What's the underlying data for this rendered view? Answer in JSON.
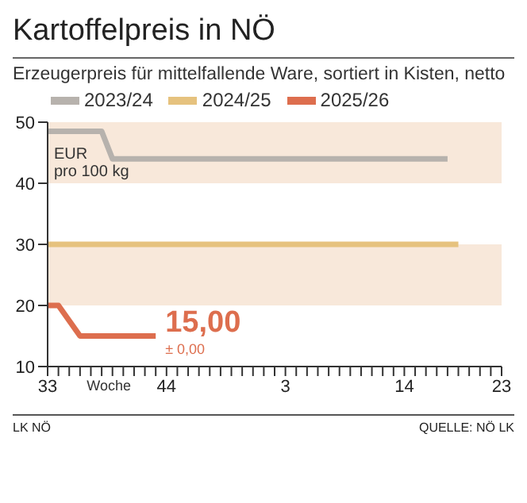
{
  "chart_data": {
    "type": "line",
    "title": "Kartoffelpreis in NÖ",
    "subtitle": "Erzeugerpreis für mittelfallende Ware, sortiert in Kisten, netto",
    "xlabel": "Woche",
    "ylabel": "EUR pro 100 kg",
    "categories": [
      "33",
      null,
      null,
      null,
      null,
      null,
      null,
      null,
      null,
      null,
      null,
      "44",
      null,
      null,
      null,
      null,
      null,
      null,
      null,
      null,
      null,
      null,
      "3",
      null,
      null,
      null,
      null,
      null,
      null,
      null,
      null,
      null,
      null,
      "14",
      null,
      null,
      null,
      null,
      null,
      null,
      null,
      null,
      "23"
    ],
    "series": [
      {
        "name": "2023/24",
        "color": "#b7b2ad",
        "values": [
          48.5,
          48.5,
          48.5,
          48.5,
          48.5,
          48.5,
          44,
          44,
          44,
          44,
          44,
          44,
          44,
          44,
          44,
          44,
          44,
          44,
          44,
          44,
          44,
          44,
          44,
          44,
          44,
          44,
          44,
          44,
          44,
          44,
          44,
          44,
          44,
          44,
          44,
          44,
          44,
          44,
          null,
          null,
          null,
          null,
          null
        ]
      },
      {
        "name": "2024/25",
        "color": "#e6c27e",
        "values": [
          30,
          30,
          30,
          30,
          30,
          30,
          30,
          30,
          30,
          30,
          30,
          30,
          30,
          30,
          30,
          30,
          30,
          30,
          30,
          30,
          30,
          30,
          30,
          30,
          30,
          30,
          30,
          30,
          30,
          30,
          30,
          30,
          30,
          30,
          30,
          30,
          30,
          30,
          30,
          null,
          null,
          null,
          null
        ]
      },
      {
        "name": "2025/26",
        "color": "#dd6e4e",
        "values": [
          20,
          20,
          17.5,
          15,
          15,
          15,
          15,
          15,
          15,
          15,
          15,
          null,
          null,
          null,
          null,
          null,
          null,
          null,
          null,
          null,
          null,
          null,
          null,
          null,
          null,
          null,
          null,
          null,
          null,
          null,
          null,
          null,
          null,
          null,
          null,
          null,
          null,
          null,
          null,
          null,
          null,
          null,
          null
        ]
      }
    ],
    "ylim": [
      10,
      50
    ],
    "yticks": [
      10,
      20,
      30,
      40,
      50
    ],
    "bands": [
      {
        "axis": "y",
        "from": 40,
        "to": 50,
        "color": "#f8e8da"
      },
      {
        "axis": "y",
        "from": 20,
        "to": 30,
        "color": "#f8e8da"
      }
    ],
    "annotations": [
      "15,00",
      "± 0,00",
      "LK NÖ",
      "QUELLE: NÖ LK"
    ],
    "legend": "top",
    "marker": "none"
  }
}
